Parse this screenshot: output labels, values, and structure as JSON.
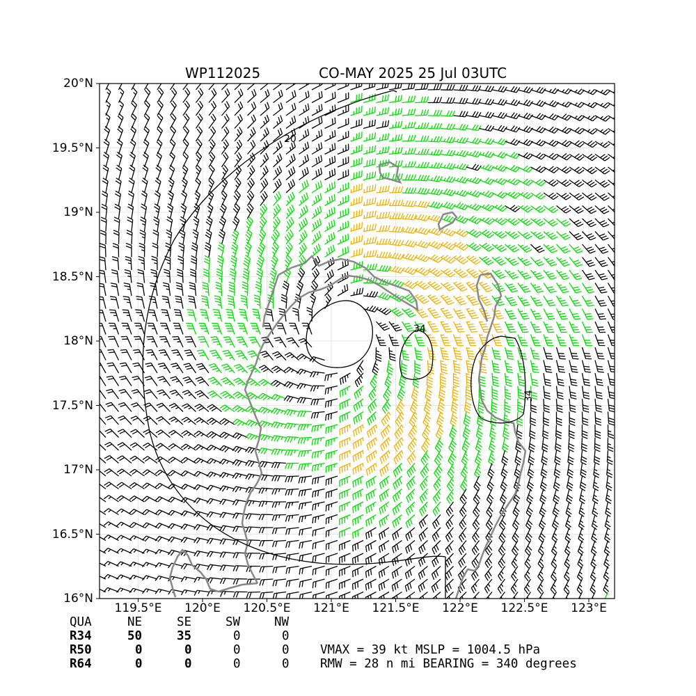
{
  "header": {
    "storm_id": "WP112025",
    "title": "CO-MAY 2025 25 Jul 03UTC"
  },
  "map": {
    "lon_range": [
      119.2,
      123.2
    ],
    "lat_range": [
      16.0,
      20.0
    ],
    "y_ticks": [
      "20°N",
      "19.5°N",
      "19°N",
      "18.5°N",
      "18°N",
      "17.5°N",
      "17°N",
      "16.5°N",
      "16°N"
    ],
    "x_ticks": [
      "119.5°E",
      "120°E",
      "120.5°E",
      "121°E",
      "121.5°E",
      "122°E",
      "122.5°E",
      "123°E"
    ],
    "contour_labels": [
      "20",
      "34",
      "34"
    ],
    "center": {
      "lon": 121.1,
      "lat": 18.05
    },
    "colors": {
      "below_34kt": "#000000",
      "gale_34kt": "#00e000",
      "above_gale": "#f0b000",
      "coast": "#888888"
    }
  },
  "radii_table": {
    "header": {
      "qua": "QUA",
      "ne": "NE",
      "se": "SE",
      "sw": "SW",
      "nw": "NW"
    },
    "rows": [
      {
        "label": "R34",
        "ne": "50",
        "se": "35",
        "sw": "0",
        "nw": "0"
      },
      {
        "label": "R50",
        "ne": "0",
        "se": "0",
        "sw": "0",
        "nw": "0"
      },
      {
        "label": "R64",
        "ne": "0",
        "se": "0",
        "sw": "0",
        "nw": "0"
      }
    ]
  },
  "summary": {
    "line1": "VMAX =  39 kt MSLP = 1004.5 hPa",
    "line2": "RMW =  28 n mi BEARING = 340 degrees"
  }
}
